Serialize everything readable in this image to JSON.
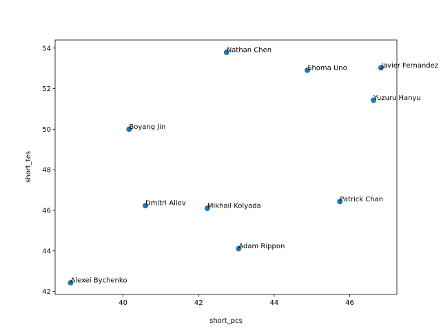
{
  "chart_data": {
    "type": "scatter",
    "xlabel": "short_pcs",
    "ylabel": "short_tes",
    "xlim": [
      38.2,
      47.25
    ],
    "ylim": [
      41.85,
      54.4
    ],
    "xticks": [
      40,
      42,
      44,
      46
    ],
    "yticks": [
      42,
      44,
      46,
      48,
      50,
      52,
      54
    ],
    "grid": false,
    "marker_color": "#1f77b4",
    "points": [
      {
        "label": "Nathan Chen",
        "x": 42.74,
        "y": 53.79
      },
      {
        "label": "Shoma Uno",
        "x": 44.88,
        "y": 52.91
      },
      {
        "label": "Javier Fernandez",
        "x": 46.83,
        "y": 53.03
      },
      {
        "label": "Yuzuru Hanyu",
        "x": 46.63,
        "y": 51.43
      },
      {
        "label": "Boyang Jin",
        "x": 40.16,
        "y": 50.0
      },
      {
        "label": "Patrick Chan",
        "x": 45.74,
        "y": 46.43
      },
      {
        "label": "Dmitri Aliev",
        "x": 40.59,
        "y": 46.23
      },
      {
        "label": "Mikhail Kolyada",
        "x": 42.23,
        "y": 46.1
      },
      {
        "label": "Adam Rippon",
        "x": 43.06,
        "y": 44.11
      },
      {
        "label": "Alexei Bychenko",
        "x": 38.61,
        "y": 42.43
      }
    ]
  }
}
